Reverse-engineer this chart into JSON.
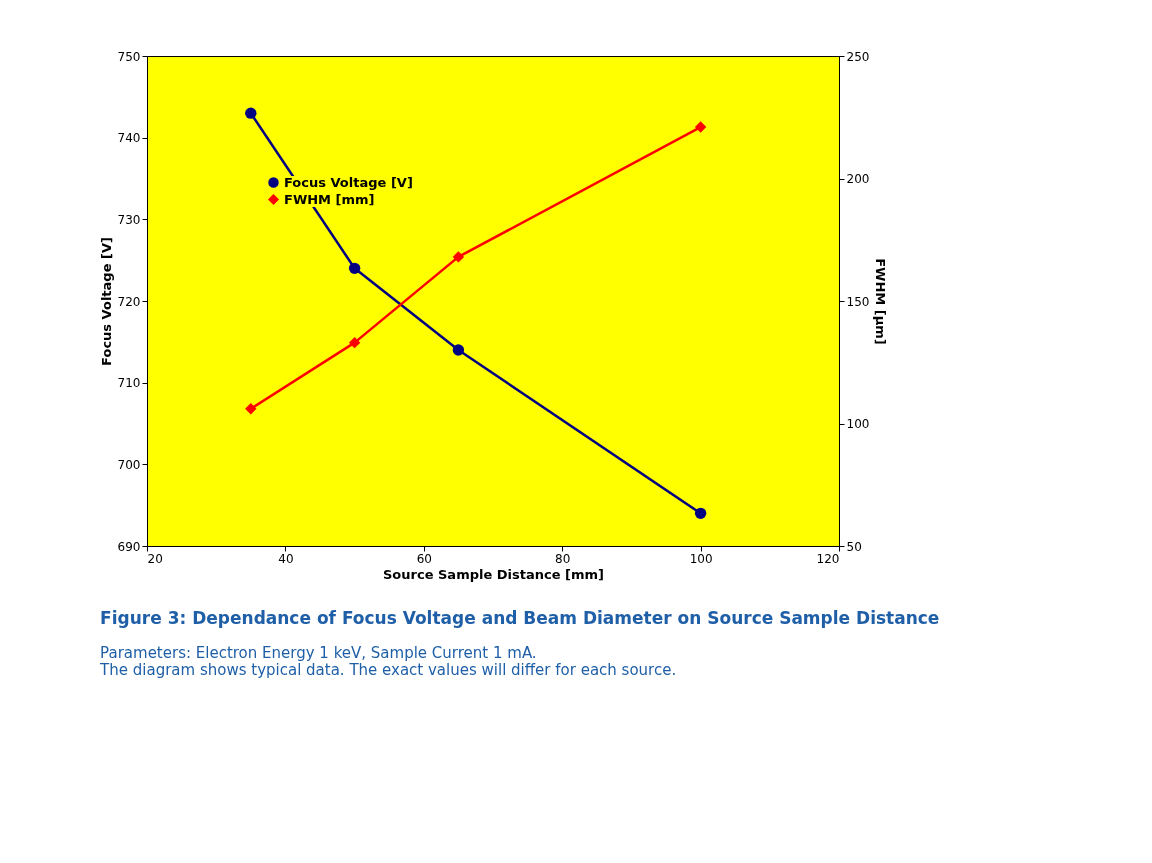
{
  "chart_data": {
    "type": "line",
    "title": "Figure 3:  Dependance of Focus Voltage and Beam Diameter on Source Sample Distance",
    "annotations": [
      "Parameters: Electron Energy 1 keV, Sample Current 1 mA.",
      "The diagram shows typical data. The exact values will differ for each source."
    ],
    "xlabel": "Source Sample Distance [mm]",
    "ylabel": "Focus Voltage [V]",
    "y2label": "FWHM [µm]",
    "x": [
      35,
      50,
      65,
      100
    ],
    "series": [
      {
        "name": "Focus Voltage [V]",
        "color": "#000080",
        "marker": "circle",
        "values": [
          743,
          724,
          714,
          694
        ]
      },
      {
        "name": "FWHM [mm]",
        "color": "#ff0000",
        "marker": "diamond",
        "axis": "y2",
        "values": [
          106,
          133,
          168,
          221
        ]
      }
    ],
    "xlim": [
      20,
      120
    ],
    "xticks": [
      20,
      40,
      60,
      80,
      100,
      120
    ],
    "ylim": [
      690,
      750
    ],
    "yticks": [
      690,
      700,
      710,
      720,
      730,
      740,
      750
    ],
    "y2lim": [
      50,
      250
    ],
    "y2ticks": [
      50,
      100,
      150,
      200,
      250
    ],
    "grid": false,
    "legend": "top left",
    "line_style": "solid"
  }
}
